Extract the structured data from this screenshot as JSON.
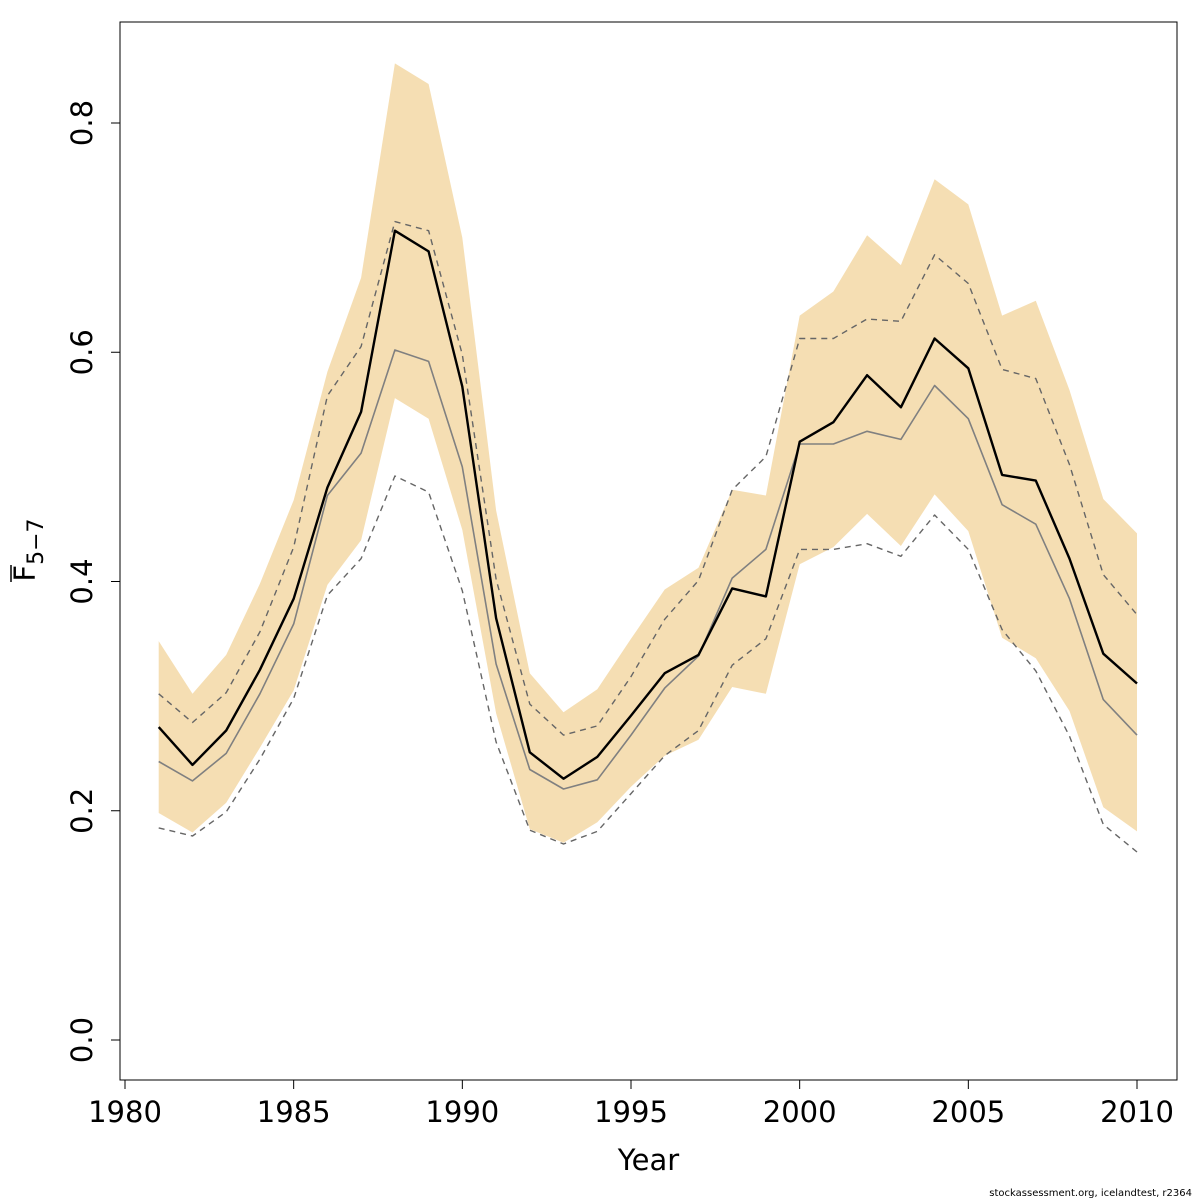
{
  "chart_data": {
    "type": "line",
    "xlabel": "Year",
    "ylabel": "F",
    "ylabel_subscript": "5−7",
    "xlim": [
      1980,
      2011
    ],
    "ylim": [
      0,
      0.88
    ],
    "xticks": [
      "1980",
      "1985",
      "1990",
      "1995",
      "2000",
      "2005",
      "2010"
    ],
    "yticks": [
      "0.0",
      "0.2",
      "0.4",
      "0.6",
      "0.8"
    ],
    "grid": false,
    "x": [
      1981,
      1982,
      1983,
      1984,
      1985,
      1986,
      1987,
      1988,
      1989,
      1990,
      1991,
      1992,
      1993,
      1994,
      1995,
      1996,
      1997,
      1998,
      1999,
      2000,
      2001,
      2002,
      2003,
      2004,
      2005,
      2006,
      2007,
      2008,
      2009,
      2010
    ],
    "series": [
      {
        "role": "estimate",
        "values": [
          0.273,
          0.24,
          0.27,
          0.323,
          0.385,
          0.482,
          0.548,
          0.706,
          0.688,
          0.57,
          0.368,
          0.251,
          0.228,
          0.247,
          0.283,
          0.32,
          0.336,
          0.394,
          0.387,
          0.522,
          0.539,
          0.58,
          0.552,
          0.612,
          0.586,
          0.493,
          0.488,
          0.42,
          0.337,
          0.311
        ],
        "color": "#000000"
      },
      {
        "role": "alternative-estimate",
        "values": [
          0.243,
          0.226,
          0.25,
          0.302,
          0.363,
          0.475,
          0.512,
          0.602,
          0.592,
          0.5,
          0.328,
          0.236,
          0.219,
          0.227,
          0.266,
          0.307,
          0.335,
          0.403,
          0.428,
          0.52,
          0.52,
          0.531,
          0.524,
          0.571,
          0.542,
          0.467,
          0.45,
          0.385,
          0.297,
          0.266
        ],
        "color": "#808080"
      },
      {
        "role": "upper-dashed",
        "values": [
          0.302,
          0.277,
          0.303,
          0.356,
          0.43,
          0.562,
          0.605,
          0.714,
          0.706,
          0.598,
          0.402,
          0.293,
          0.266,
          0.274,
          0.317,
          0.367,
          0.401,
          0.48,
          0.509,
          0.612,
          0.612,
          0.629,
          0.627,
          0.685,
          0.66,
          0.585,
          0.577,
          0.502,
          0.406,
          0.371
        ],
        "color": "#666666"
      },
      {
        "role": "lower-dashed",
        "values": [
          0.185,
          0.178,
          0.199,
          0.245,
          0.298,
          0.388,
          0.42,
          0.492,
          0.478,
          0.392,
          0.26,
          0.183,
          0.171,
          0.182,
          0.215,
          0.248,
          0.27,
          0.327,
          0.35,
          0.428,
          0.428,
          0.433,
          0.422,
          0.458,
          0.428,
          0.358,
          0.322,
          0.265,
          0.188,
          0.164
        ],
        "color": "#666666"
      }
    ],
    "band": {
      "upper": [
        0.348,
        0.302,
        0.336,
        0.398,
        0.471,
        0.583,
        0.665,
        0.852,
        0.834,
        0.7,
        0.462,
        0.32,
        0.286,
        0.306,
        0.35,
        0.393,
        0.412,
        0.48,
        0.475,
        0.632,
        0.653,
        0.702,
        0.676,
        0.751,
        0.729,
        0.632,
        0.645,
        0.567,
        0.472,
        0.442
      ],
      "lower": [
        0.198,
        0.181,
        0.207,
        0.255,
        0.305,
        0.397,
        0.436,
        0.56,
        0.542,
        0.445,
        0.285,
        0.184,
        0.172,
        0.19,
        0.221,
        0.248,
        0.262,
        0.308,
        0.302,
        0.415,
        0.43,
        0.459,
        0.431,
        0.476,
        0.444,
        0.351,
        0.333,
        0.287,
        0.203,
        0.182
      ],
      "color": "#f5deb3"
    },
    "footer": "stockassessment.org, icelandtest, r2364"
  }
}
